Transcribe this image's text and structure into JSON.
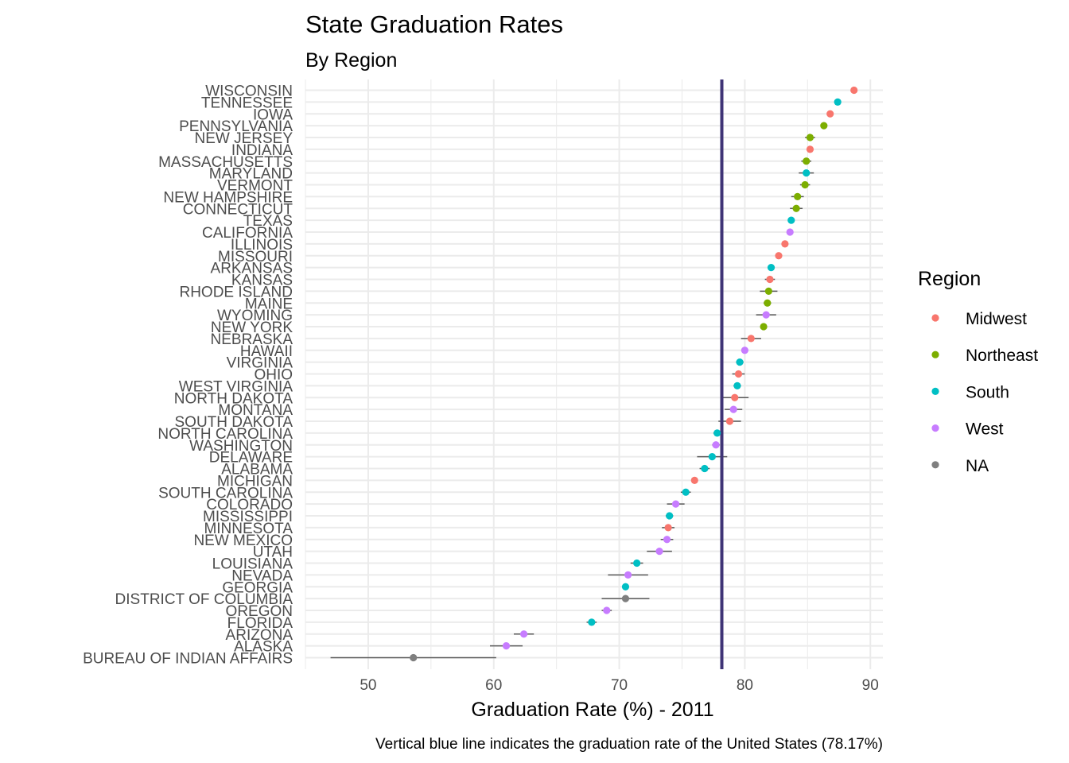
{
  "chart_data": {
    "type": "scatter",
    "title": "State Graduation Rates",
    "subtitle": "By Region",
    "xlabel": "Graduation Rate (%) - 2011",
    "caption": "Vertical blue line indicates the graduation rate of the United States (78.17%)",
    "xlim": [
      45,
      91
    ],
    "xticks": [
      "50",
      "60",
      "70",
      "80",
      "90"
    ],
    "reference_line": {
      "value": 78.17,
      "color": "#3f3476"
    },
    "grid": true,
    "legend": {
      "title": "Region",
      "placement": "right",
      "entries": [
        {
          "name": "Midwest",
          "color": "#f8766d"
        },
        {
          "name": "Northeast",
          "color": "#7cae00"
        },
        {
          "name": "South",
          "color": "#00bfc4"
        },
        {
          "name": "West",
          "color": "#c77cff"
        },
        {
          "name": "NA",
          "color": "#7f7f7f"
        }
      ]
    },
    "points": [
      {
        "state": "WISCONSIN",
        "region": "Midwest",
        "value": 88.7,
        "lo": 88.6,
        "hi": 88.8
      },
      {
        "state": "TENNESSEE",
        "region": "South",
        "value": 87.4,
        "lo": 87.3,
        "hi": 87.5
      },
      {
        "state": "IOWA",
        "region": "Midwest",
        "value": 86.8,
        "lo": 86.7,
        "hi": 86.9
      },
      {
        "state": "PENNSYLVANIA",
        "region": "Northeast",
        "value": 86.3,
        "lo": 86.1,
        "hi": 86.5
      },
      {
        "state": "NEW JERSEY",
        "region": "Northeast",
        "value": 85.2,
        "lo": 84.8,
        "hi": 85.6
      },
      {
        "state": "INDIANA",
        "region": "Midwest",
        "value": 85.2,
        "lo": 85.0,
        "hi": 85.4
      },
      {
        "state": "MASSACHUSETTS",
        "region": "Northeast",
        "value": 84.9,
        "lo": 84.5,
        "hi": 85.3
      },
      {
        "state": "MARYLAND",
        "region": "South",
        "value": 84.9,
        "lo": 84.3,
        "hi": 85.5
      },
      {
        "state": "VERMONT",
        "region": "Northeast",
        "value": 84.8,
        "lo": 84.4,
        "hi": 85.2
      },
      {
        "state": "NEW HAMPSHIRE",
        "region": "Northeast",
        "value": 84.2,
        "lo": 83.7,
        "hi": 84.7
      },
      {
        "state": "CONNECTICUT",
        "region": "Northeast",
        "value": 84.1,
        "lo": 83.6,
        "hi": 84.6
      },
      {
        "state": "TEXAS",
        "region": "South",
        "value": 83.7,
        "lo": 83.6,
        "hi": 83.8
      },
      {
        "state": "CALIFORNIA",
        "region": "West",
        "value": 83.6,
        "lo": 83.5,
        "hi": 83.7
      },
      {
        "state": "ILLINOIS",
        "region": "Midwest",
        "value": 83.2,
        "lo": 83.1,
        "hi": 83.3
      },
      {
        "state": "MISSOURI",
        "region": "Midwest",
        "value": 82.7,
        "lo": 82.6,
        "hi": 82.8
      },
      {
        "state": "ARKANSAS",
        "region": "South",
        "value": 82.1,
        "lo": 82.0,
        "hi": 82.2
      },
      {
        "state": "KANSAS",
        "region": "Midwest",
        "value": 82.0,
        "lo": 81.6,
        "hi": 82.4
      },
      {
        "state": "RHODE ISLAND",
        "region": "Northeast",
        "value": 81.9,
        "lo": 81.2,
        "hi": 82.6
      },
      {
        "state": "MAINE",
        "region": "Northeast",
        "value": 81.8,
        "lo": 81.5,
        "hi": 82.1
      },
      {
        "state": "WYOMING",
        "region": "West",
        "value": 81.7,
        "lo": 80.9,
        "hi": 82.5
      },
      {
        "state": "NEW YORK",
        "region": "Northeast",
        "value": 81.5,
        "lo": 81.4,
        "hi": 81.6
      },
      {
        "state": "NEBRASKA",
        "region": "Midwest",
        "value": 80.5,
        "lo": 79.7,
        "hi": 81.3
      },
      {
        "state": "HAWAII",
        "region": "West",
        "value": 80.0,
        "lo": 79.8,
        "hi": 80.2
      },
      {
        "state": "VIRGINIA",
        "region": "South",
        "value": 79.6,
        "lo": 79.3,
        "hi": 79.9
      },
      {
        "state": "OHIO",
        "region": "Midwest",
        "value": 79.5,
        "lo": 79.0,
        "hi": 80.0
      },
      {
        "state": "WEST VIRGINIA",
        "region": "South",
        "value": 79.4,
        "lo": 79.1,
        "hi": 79.7
      },
      {
        "state": "NORTH DAKOTA",
        "region": "Midwest",
        "value": 79.2,
        "lo": 78.1,
        "hi": 80.3
      },
      {
        "state": "MONTANA",
        "region": "West",
        "value": 79.1,
        "lo": 78.4,
        "hi": 79.8
      },
      {
        "state": "SOUTH DAKOTA",
        "region": "Midwest",
        "value": 78.8,
        "lo": 77.9,
        "hi": 79.7
      },
      {
        "state": "NORTH CAROLINA",
        "region": "South",
        "value": 77.8,
        "lo": 77.5,
        "hi": 78.1
      },
      {
        "state": "WASHINGTON",
        "region": "West",
        "value": 77.7,
        "lo": 77.4,
        "hi": 78.0
      },
      {
        "state": "DELAWARE",
        "region": "South",
        "value": 77.4,
        "lo": 76.2,
        "hi": 78.6
      },
      {
        "state": "ALABAMA",
        "region": "South",
        "value": 76.8,
        "lo": 76.4,
        "hi": 77.2
      },
      {
        "state": "MICHIGAN",
        "region": "Midwest",
        "value": 76.0,
        "lo": 75.9,
        "hi": 76.1
      },
      {
        "state": "SOUTH CAROLINA",
        "region": "South",
        "value": 75.3,
        "lo": 74.9,
        "hi": 75.7
      },
      {
        "state": "COLORADO",
        "region": "West",
        "value": 74.5,
        "lo": 73.8,
        "hi": 75.2
      },
      {
        "state": "MISSISSIPPI",
        "region": "South",
        "value": 74.0,
        "lo": 73.7,
        "hi": 74.3
      },
      {
        "state": "MINNESOTA",
        "region": "Midwest",
        "value": 73.9,
        "lo": 73.4,
        "hi": 74.4
      },
      {
        "state": "NEW MEXICO",
        "region": "West",
        "value": 73.8,
        "lo": 73.3,
        "hi": 74.3
      },
      {
        "state": "UTAH",
        "region": "West",
        "value": 73.2,
        "lo": 72.2,
        "hi": 74.2
      },
      {
        "state": "LOUISIANA",
        "region": "South",
        "value": 71.4,
        "lo": 70.9,
        "hi": 71.9
      },
      {
        "state": "NEVADA",
        "region": "West",
        "value": 70.7,
        "lo": 69.1,
        "hi": 72.3
      },
      {
        "state": "GEORGIA",
        "region": "South",
        "value": 70.5,
        "lo": 70.3,
        "hi": 70.7
      },
      {
        "state": "DISTRICT OF COLUMBIA",
        "region": "NA",
        "value": 70.5,
        "lo": 68.6,
        "hi": 72.4
      },
      {
        "state": "OREGON",
        "region": "West",
        "value": 69.0,
        "lo": 68.6,
        "hi": 69.4
      },
      {
        "state": "FLORIDA",
        "region": "South",
        "value": 67.8,
        "lo": 67.4,
        "hi": 68.2
      },
      {
        "state": "ARIZONA",
        "region": "West",
        "value": 62.4,
        "lo": 61.6,
        "hi": 63.2
      },
      {
        "state": "ALASKA",
        "region": "West",
        "value": 61.0,
        "lo": 59.7,
        "hi": 62.3
      },
      {
        "state": "BUREAU OF INDIAN AFFAIRS",
        "region": "NA",
        "value": 53.6,
        "lo": 47.0,
        "hi": 60.2
      }
    ]
  }
}
